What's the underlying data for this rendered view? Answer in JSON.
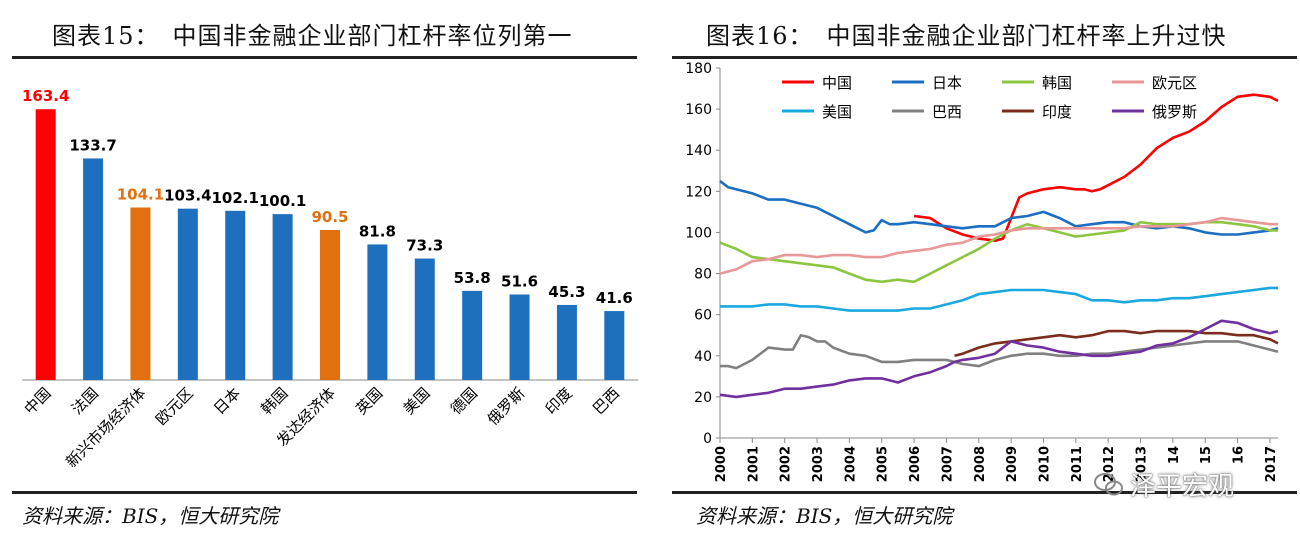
{
  "left": {
    "title": "图表15：　中国非金融企业部门杠杆率位列第一",
    "source": "资料来源：BIS，恒大研究院"
  },
  "right": {
    "title": "图表16：　中国非金融企业部门杠杆率上升过快",
    "source": "资料来源：BIS，恒大研究院"
  },
  "watermark": "泽平宏观",
  "colors": {
    "red": "#FF0000",
    "blue": "#1F6FBF",
    "orange": "#E07010"
  },
  "chart_data": [
    {
      "type": "bar",
      "title": "中国非金融企业部门杠杆率位列第一",
      "categories": [
        "中国",
        "法国",
        "新兴市场经济体",
        "欧元区",
        "日本",
        "韩国",
        "发达经济体",
        "英国",
        "美国",
        "德国",
        "俄罗斯",
        "印度",
        "巴西"
      ],
      "values": [
        163.4,
        133.7,
        104.1,
        103.4,
        102.1,
        100.1,
        90.5,
        81.8,
        73.3,
        53.8,
        51.6,
        45.3,
        41.6
      ],
      "value_labels": [
        "163.4",
        "133.7",
        "104.1",
        "103.4",
        "102.1",
        "100.1",
        "90.5",
        "81.8",
        "73.3",
        "53.8",
        "51.6",
        "45.3",
        "41.6"
      ],
      "bar_colors": [
        "#FF0000",
        "#1F6FBF",
        "#E07010",
        "#1F6FBF",
        "#1F6FBF",
        "#1F6FBF",
        "#E07010",
        "#1F6FBF",
        "#1F6FBF",
        "#1F6FBF",
        "#1F6FBF",
        "#1F6FBF",
        "#1F6FBF"
      ],
      "ylim": [
        0,
        175
      ]
    },
    {
      "type": "line",
      "title": "中国非金融企业部门杠杆率上升过快",
      "xlim": [
        2000,
        2017.25
      ],
      "ylim": [
        0,
        180
      ],
      "yticks": [
        "0",
        "20",
        "40",
        "60",
        "80",
        "100",
        "120",
        "140",
        "160",
        "180"
      ],
      "xticks": [
        "2000",
        "2001",
        "2002",
        "2003",
        "2004",
        "2005",
        "2006",
        "2007",
        "2008",
        "2009",
        "2010",
        "2011",
        "2012",
        "2013",
        "14",
        "15",
        "16",
        "2017"
      ],
      "legend_position": "top",
      "series": [
        {
          "name": "中国",
          "color": "#FF0000",
          "x": [
            2006,
            2006.5,
            2007,
            2007.5,
            2008,
            2008.5,
            2008.75,
            2009,
            2009.25,
            2009.5,
            2010,
            2010.5,
            2011,
            2011.25,
            2011.5,
            2011.75,
            2012,
            2012.5,
            2013,
            2013.5,
            2014,
            2014.5,
            2015,
            2015.5,
            2016,
            2016.5,
            2017,
            2017.25
          ],
          "y": [
            108,
            107,
            102,
            99,
            97,
            96,
            97,
            107,
            117,
            119,
            121,
            122,
            121,
            121,
            120,
            121,
            123,
            127,
            133,
            141,
            146,
            149,
            154,
            161,
            166,
            167,
            166,
            164
          ]
        },
        {
          "name": "日本",
          "color": "#1B6EC2",
          "x": [
            2000,
            2000.25,
            2000.5,
            2001,
            2001.5,
            2002,
            2002.5,
            2003,
            2003.5,
            2004,
            2004.5,
            2004.75,
            2005,
            2005.25,
            2005.5,
            2006,
            2006.5,
            2007,
            2007.5,
            2008,
            2008.5,
            2009,
            2009.5,
            2010,
            2010.5,
            2011,
            2011.5,
            2012,
            2012.5,
            2013,
            2013.5,
            2014,
            2014.5,
            2015,
            2015.5,
            2016,
            2016.5,
            2017,
            2017.25
          ],
          "y": [
            125,
            122,
            121,
            119,
            116,
            116,
            114,
            112,
            108,
            104,
            100,
            101,
            106,
            104,
            104,
            105,
            104,
            103,
            102,
            103,
            103,
            107,
            108,
            110,
            107,
            103,
            104,
            105,
            105,
            103,
            102,
            103,
            102,
            100,
            99,
            99,
            100,
            101,
            102
          ]
        },
        {
          "name": "韩国",
          "color": "#8CC63F",
          "x": [
            2000,
            2000.5,
            2001,
            2001.5,
            2002,
            2002.5,
            2003,
            2003.5,
            2004,
            2004.5,
            2005,
            2005.5,
            2006,
            2006.5,
            2007,
            2007.5,
            2008,
            2008.5,
            2009,
            2009.5,
            2010,
            2010.5,
            2011,
            2011.5,
            2012,
            2012.5,
            2013,
            2013.5,
            2014,
            2014.5,
            2015,
            2015.5,
            2016,
            2016.5,
            2017,
            2017.25
          ],
          "y": [
            95,
            92,
            88,
            87,
            86,
            85,
            84,
            83,
            80,
            77,
            76,
            77,
            76,
            80,
            84,
            88,
            92,
            97,
            101,
            104,
            102,
            100,
            98,
            99,
            100,
            101,
            105,
            104,
            104,
            104,
            105,
            105,
            104,
            103,
            101,
            101
          ]
        },
        {
          "name": "欧元区",
          "color": "#E89898",
          "x": [
            2000,
            2000.5,
            2001,
            2001.5,
            2002,
            2002.5,
            2003,
            2003.5,
            2004,
            2004.5,
            2005,
            2005.5,
            2006,
            2006.5,
            2007,
            2007.5,
            2008,
            2008.5,
            2009,
            2009.5,
            2010,
            2010.5,
            2011,
            2011.5,
            2012,
            2012.5,
            2013,
            2013.5,
            2014,
            2014.5,
            2015,
            2015.5,
            2016,
            2016.5,
            2017,
            2017.25
          ],
          "y": [
            80,
            82,
            86,
            87,
            89,
            89,
            88,
            89,
            89,
            88,
            88,
            90,
            91,
            92,
            94,
            95,
            98,
            99,
            101,
            102,
            102,
            102,
            102,
            102,
            102,
            102,
            103,
            103,
            103,
            104,
            105,
            107,
            106,
            105,
            104,
            104
          ]
        },
        {
          "name": "美国",
          "color": "#1BA8E0",
          "x": [
            2000,
            2000.5,
            2001,
            2001.5,
            2002,
            2002.5,
            2003,
            2003.5,
            2004,
            2004.5,
            2005,
            2005.5,
            2006,
            2006.5,
            2007,
            2007.5,
            2008,
            2008.5,
            2009,
            2009.5,
            2010,
            2010.5,
            2011,
            2011.5,
            2012,
            2012.5,
            2013,
            2013.5,
            2014,
            2014.5,
            2015,
            2015.5,
            2016,
            2016.5,
            2017,
            2017.25
          ],
          "y": [
            64,
            64,
            64,
            65,
            65,
            64,
            64,
            63,
            62,
            62,
            62,
            62,
            63,
            63,
            65,
            67,
            70,
            71,
            72,
            72,
            72,
            71,
            70,
            67,
            67,
            66,
            67,
            67,
            68,
            68,
            69,
            70,
            71,
            72,
            73,
            73
          ]
        },
        {
          "name": "巴西",
          "color": "#808080",
          "x": [
            2000,
            2000.25,
            2000.5,
            2001,
            2001.5,
            2002,
            2002.25,
            2002.5,
            2002.75,
            2003,
            2003.25,
            2003.5,
            2004,
            2004.5,
            2005,
            2005.5,
            2006,
            2006.5,
            2007,
            2007.5,
            2008,
            2008.5,
            2009,
            2009.5,
            2010,
            2010.5,
            2011,
            2011.5,
            2012,
            2012.5,
            2013,
            2013.5,
            2014,
            2014.5,
            2015,
            2015.5,
            2016,
            2016.5,
            2017,
            2017.25
          ],
          "y": [
            35,
            35,
            34,
            38,
            44,
            43,
            43,
            50,
            49,
            47,
            47,
            44,
            41,
            40,
            37,
            37,
            38,
            38,
            38,
            36,
            35,
            38,
            40,
            41,
            41,
            40,
            40,
            41,
            41,
            42,
            43,
            44,
            45,
            46,
            47,
            47,
            47,
            45,
            43,
            42
          ]
        },
        {
          "name": "印度",
          "color": "#7B2C1A",
          "x": [
            2007.25,
            2007.5,
            2008,
            2008.5,
            2009,
            2009.5,
            2010,
            2010.5,
            2011,
            2011.5,
            2012,
            2012.5,
            2013,
            2013.5,
            2014,
            2014.5,
            2015,
            2015.5,
            2016,
            2016.5,
            2017,
            2017.25
          ],
          "y": [
            40,
            41,
            44,
            46,
            47,
            48,
            49,
            50,
            49,
            50,
            52,
            52,
            51,
            52,
            52,
            52,
            51,
            51,
            50,
            50,
            48,
            46
          ]
        },
        {
          "name": "俄罗斯",
          "color": "#7030A0",
          "x": [
            2000,
            2000.5,
            2001,
            2001.5,
            2002,
            2002.5,
            2003,
            2003.5,
            2004,
            2004.5,
            2005,
            2005.25,
            2005.5,
            2006,
            2006.5,
            2007,
            2007.25,
            2007.5,
            2008,
            2008.5,
            2009,
            2009.5,
            2010,
            2010.5,
            2011,
            2011.5,
            2012,
            2012.5,
            2013,
            2013.5,
            2014,
            2014.5,
            2015,
            2015.5,
            2016,
            2016.5,
            2017,
            2017.25
          ],
          "y": [
            21,
            20,
            21,
            22,
            24,
            24,
            25,
            26,
            28,
            29,
            29,
            28,
            27,
            30,
            32,
            35,
            37,
            38,
            39,
            41,
            47,
            45,
            44,
            42,
            41,
            40,
            40,
            41,
            42,
            45,
            46,
            49,
            53,
            57,
            56,
            53,
            51,
            52
          ]
        }
      ]
    }
  ]
}
